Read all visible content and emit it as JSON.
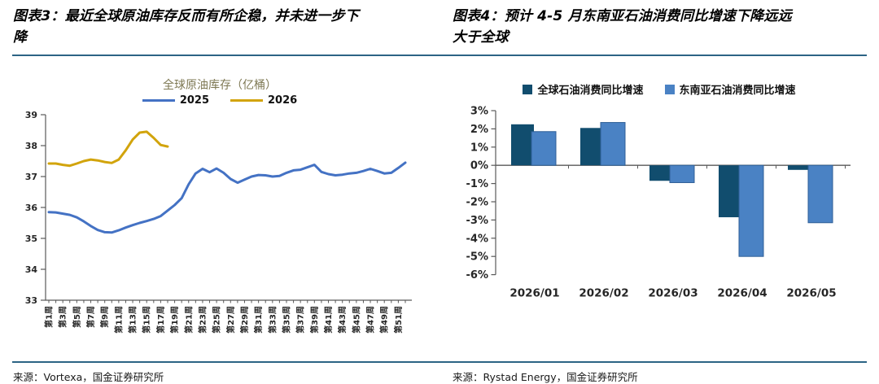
{
  "figures": {
    "left": {
      "caption": "图表3：最近全球原油库存反而有所企稳，并未进一步下降",
      "source": "来源：Vortexa，国金证券研究所"
    },
    "right": {
      "caption": "图表4：预计 4-5 月东南亚石油消费同比增速下降远远大于全球",
      "source": "来源：Rystad Energy，国金证券研究所"
    }
  },
  "colors": {
    "divider_blue": "#2C6485",
    "axis_gray": "#595959",
    "chart_title_gray_gold": "#7E7853",
    "line_2025_blue": "#4472C4",
    "line_2026_gold": "#D2A40C",
    "bar_global_dark_blue": "#114D6E",
    "bar_sea_medium_blue": "#4A82C4"
  },
  "chart_data": [
    {
      "type": "line",
      "title": "全球原油库存（亿桶）",
      "ylabel": "",
      "xlabel": "",
      "ylim": [
        33,
        39
      ],
      "yticks": [
        39,
        38,
        37,
        36,
        35,
        34,
        33
      ],
      "grid": false,
      "legend_position": "top",
      "weeks_total": 52,
      "x_tick_weeks": [
        1,
        3,
        5,
        7,
        9,
        11,
        13,
        15,
        17,
        19,
        21,
        23,
        25,
        27,
        29,
        31,
        33,
        35,
        37,
        39,
        41,
        43,
        45,
        47,
        49,
        51
      ],
      "x_tick_labels": [
        "第1周",
        "第3周",
        "第5周",
        "第7周",
        "第9周",
        "第11周",
        "第13周",
        "第15周",
        "第17周",
        "第19周",
        "第21周",
        "第23周",
        "第25周",
        "第27周",
        "第29周",
        "第31周",
        "第33周",
        "第35周",
        "第37周",
        "第39周",
        "第41周",
        "第43周",
        "第45周",
        "第47周",
        "第49周",
        "第51周"
      ],
      "series": [
        {
          "name": "2025",
          "color": "#4472C4",
          "values": [
            35.85,
            35.84,
            35.8,
            35.76,
            35.68,
            35.55,
            35.4,
            35.27,
            35.2,
            35.19,
            35.26,
            35.35,
            35.43,
            35.5,
            35.56,
            35.63,
            35.72,
            35.9,
            36.08,
            36.3,
            36.75,
            37.1,
            37.25,
            37.14,
            37.26,
            37.12,
            36.92,
            36.8,
            36.9,
            37.0,
            37.05,
            37.04,
            37.0,
            37.02,
            37.12,
            37.2,
            37.22,
            37.3,
            37.38,
            37.15,
            37.08,
            37.04,
            37.06,
            37.1,
            37.12,
            37.18,
            37.25,
            37.18,
            37.1,
            37.12,
            37.28,
            37.45
          ]
        },
        {
          "name": "2026",
          "color": "#D2A40C",
          "values": [
            37.42,
            37.42,
            37.38,
            37.35,
            37.42,
            37.5,
            37.55,
            37.52,
            37.47,
            37.44,
            37.55,
            37.85,
            38.2,
            38.42,
            38.45,
            38.25,
            38.02,
            37.97
          ]
        }
      ]
    },
    {
      "type": "bar",
      "title": "",
      "categories": [
        "2026/01",
        "2026/02",
        "2026/03",
        "2026/04",
        "2026/05"
      ],
      "ylim": [
        -6,
        3
      ],
      "ytick_values": [
        3,
        2,
        1,
        0,
        -1,
        -2,
        -3,
        -4,
        -5,
        -6
      ],
      "ytick_labels": [
        "3%",
        "2%",
        "1%",
        "0%",
        "-1%",
        "-2%",
        "-3%",
        "-4%",
        "-5%",
        "-6%"
      ],
      "grid": false,
      "legend_position": "top",
      "series": [
        {
          "name": "全球石油消费同比增速",
          "color": "#114D6E",
          "values": [
            2.25,
            2.05,
            -0.85,
            -2.85,
            -0.25
          ]
        },
        {
          "name": "东南亚石油消费同比增速",
          "color": "#4A82C4",
          "values": [
            1.85,
            2.35,
            -0.95,
            -5.0,
            -3.15
          ]
        }
      ]
    }
  ]
}
